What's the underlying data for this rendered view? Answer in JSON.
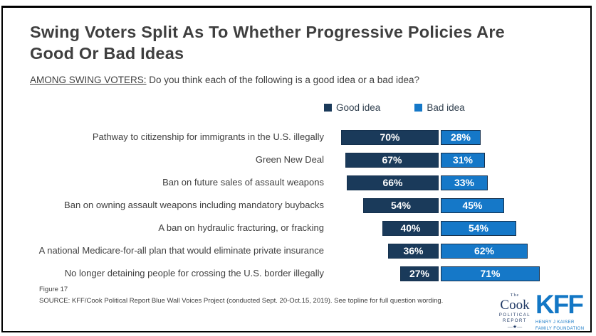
{
  "header": {
    "title": "Swing Voters Split As To Whether Progressive Policies Are Good Or Bad Ideas",
    "subtitle_lead": "AMONG SWING VOTERS:",
    "subtitle_question": " Do you think each of the following is a good idea or a bad idea?"
  },
  "legend": [
    {
      "label": "Good idea",
      "color": "#1a3a5a"
    },
    {
      "label": "Bad idea",
      "color": "#1578c8"
    }
  ],
  "chart_data": {
    "type": "bar",
    "orientation": "horizontal-diverging",
    "legend_position": "top",
    "value_suffix": "%",
    "categories": [
      "Pathway to citizenship for immigrants in the U.S. illegally",
      "Green New Deal",
      "Ban on future sales of assault weapons",
      "Ban on owning assault weapons including mandatory buybacks",
      "A ban on hydraulic fracturing, or fracking",
      "A national Medicare-for-all plan that would eliminate private insurance",
      "No longer detaining people for crossing the U.S. border illegally"
    ],
    "series": [
      {
        "name": "Good idea",
        "color": "#1a3a5a",
        "values": [
          70,
          67,
          66,
          54,
          40,
          36,
          27
        ]
      },
      {
        "name": "Bad idea",
        "color": "#1578c8",
        "values": [
          28,
          31,
          33,
          45,
          54,
          62,
          71
        ]
      }
    ]
  },
  "footer": {
    "figure_label": "Figure 17",
    "source": "SOURCE: KFF/Cook Political Report Blue Wall Voices Project (conducted Sept. 20-Oct.15, 2019). See topline for full question wording.",
    "cook_logo": {
      "the": "The",
      "name": "Cook",
      "sub1": "POLITICAL",
      "sub2": "REPORT",
      "star": "—★—"
    },
    "kff_logo": {
      "name": "KFF",
      "sub1": "HENRY J KAISER",
      "sub2": "FAMILY FOUNDATION"
    }
  }
}
